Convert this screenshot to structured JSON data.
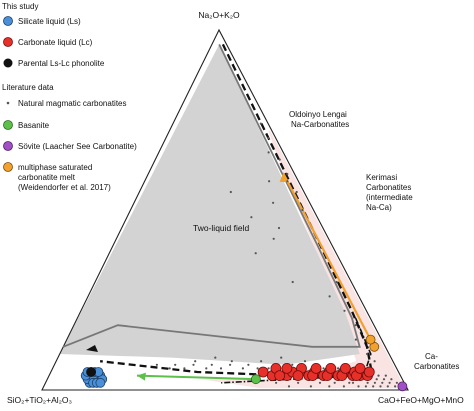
{
  "chart_data": {
    "type": "scatter",
    "coordinate_system": "ternary",
    "vertex_labels": {
      "top": "Na₂O+K₂O",
      "left": "SiO₂+TiO₂+Al₂O₃",
      "right": "CaO+FeO+MgO+MnO"
    },
    "legend": {
      "placement": "top-left",
      "groups": [
        {
          "title": "This study",
          "entries": [
            {
              "label": "Silicate liquid (Ls)",
              "marker": "circle",
              "color": "#4a90d9"
            },
            {
              "label": "Carbonate liquid (Lc)",
              "marker": "circle",
              "color": "#e8302a"
            },
            {
              "label": "Parental Ls-Lc phonolite",
              "marker": "circle",
              "color": "#111111"
            }
          ]
        },
        {
          "title": "Literature data",
          "entries": [
            {
              "label": "Natural magmatic carbonatites",
              "marker": "dot",
              "color": "#555555"
            },
            {
              "label": "Basanite",
              "marker": "circle",
              "color": "#5cc04a"
            },
            {
              "label": "Sövite (Laacher See Carbonatite)",
              "marker": "circle",
              "color": "#a04fc4"
            },
            {
              "label_lines": [
                "multiphase saturated",
                "carbonatite melt",
                "(Weidendorfer et al. 2017)"
              ],
              "marker": "circle",
              "color": "#f2a02e"
            }
          ]
        }
      ]
    },
    "annotations": {
      "two_liquid": "Two-liquid field",
      "oldoinyo": [
        "Oldoinyo Lengai",
        "Na-Carbonatites"
      ],
      "kerimasi": [
        "Kerimasi",
        "Carbonatites",
        "(intermediate",
        "Na-Ca)"
      ],
      "ca_carb": [
        "Ca-",
        "Carbonatites"
      ]
    },
    "series": [
      {
        "name": "Silicate liquid (Ls)",
        "points": [
          [
            85,
            3,
            12
          ],
          [
            83,
            4,
            13
          ],
          [
            86,
            2,
            12
          ],
          [
            84,
            3,
            13
          ],
          [
            82,
            4,
            14
          ],
          [
            85,
            4,
            11
          ],
          [
            83,
            3,
            14
          ],
          [
            86,
            3,
            11
          ],
          [
            84,
            4,
            12
          ],
          [
            82,
            3,
            15
          ],
          [
            85,
            2,
            13
          ],
          [
            83,
            5,
            12
          ],
          [
            84,
            2,
            14
          ],
          [
            86,
            4,
            10
          ],
          [
            82,
            5,
            13
          ],
          [
            83,
            2,
            15
          ],
          [
            85,
            5,
            10
          ],
          [
            84,
            5,
            11
          ]
        ]
      },
      {
        "name": "Carbonate liquid (Lc)",
        "points": [
          [
            37,
            5,
            58
          ],
          [
            35,
            4,
            61
          ],
          [
            33,
            6,
            61
          ],
          [
            31,
            4,
            65
          ],
          [
            27,
            5,
            68
          ],
          [
            25,
            4,
            71
          ],
          [
            23,
            5,
            72
          ],
          [
            21,
            4,
            75
          ],
          [
            19,
            5,
            76
          ],
          [
            17,
            4,
            79
          ],
          [
            15,
            5,
            80
          ],
          [
            13,
            4,
            83
          ],
          [
            12,
            5,
            83
          ],
          [
            11,
            4,
            85
          ],
          [
            10,
            5,
            85
          ],
          [
            9,
            4,
            87
          ],
          [
            33,
            4,
            63
          ],
          [
            29,
            5,
            66
          ],
          [
            26,
            6,
            68
          ],
          [
            24,
            4,
            72
          ],
          [
            22,
            6,
            72
          ],
          [
            20,
            4,
            76
          ],
          [
            18,
            6,
            76
          ],
          [
            16,
            4,
            80
          ],
          [
            14,
            6,
            80
          ],
          [
            12,
            4,
            84
          ],
          [
            10,
            6,
            84
          ],
          [
            30,
            6,
            64
          ],
          [
            28,
            4,
            68
          ],
          [
            8,
            5,
            87
          ]
        ]
      },
      {
        "name": "Parental Ls-Lc phonolite",
        "points": [
          [
            84,
            5,
            11
          ]
        ]
      },
      {
        "name": "Basanite",
        "points": [
          [
            40,
            3,
            57
          ]
        ]
      },
      {
        "name": "Sövite (Laacher See Carbonatite)",
        "points": [
          [
            1,
            1,
            98
          ]
        ]
      },
      {
        "name": "multiphase saturated carbonatite melt (Weidendorfer et al. 2017)",
        "points": [
          [
            3,
            12,
            85
          ],
          [
            3,
            14,
            83
          ]
        ]
      },
      {
        "name": "Natural magmatic carbonatites",
        "points": [
          [
            2,
            60,
            38
          ],
          [
            2,
            70,
            28
          ],
          [
            2,
            55,
            43
          ],
          [
            2,
            64,
            34
          ],
          [
            3,
            50,
            47
          ],
          [
            4,
            66,
            30
          ],
          [
            2,
            74,
            24
          ],
          [
            3,
            58,
            39
          ],
          [
            20,
            55,
            25
          ],
          [
            18,
            48,
            34
          ],
          [
            15,
            42,
            43
          ],
          [
            12,
            45,
            43
          ],
          [
            22,
            38,
            40
          ],
          [
            10,
            52,
            38
          ],
          [
            16,
            30,
            54
          ],
          [
            8,
            58,
            34
          ],
          [
            20,
            6,
            74
          ],
          [
            18,
            7,
            75
          ],
          [
            16,
            6,
            78
          ],
          [
            25,
            6,
            69
          ],
          [
            28,
            7,
            65
          ],
          [
            30,
            6,
            64
          ],
          [
            32,
            7,
            61
          ],
          [
            35,
            6,
            59
          ],
          [
            38,
            6,
            56
          ],
          [
            40,
            7,
            53
          ],
          [
            42,
            6,
            52
          ],
          [
            45,
            7,
            48
          ],
          [
            48,
            6,
            46
          ],
          [
            50,
            7,
            43
          ],
          [
            52,
            6,
            42
          ],
          [
            55,
            7,
            38
          ],
          [
            58,
            6,
            36
          ],
          [
            60,
            7,
            33
          ],
          [
            62,
            6,
            32
          ],
          [
            65,
            7,
            28
          ],
          [
            36,
            8,
            56
          ],
          [
            44,
            8,
            48
          ],
          [
            54,
            8,
            38
          ],
          [
            24,
            8,
            68
          ],
          [
            30,
            9,
            61
          ],
          [
            48,
            9,
            43
          ],
          [
            5,
            3,
            92
          ],
          [
            4,
            2,
            94
          ],
          [
            6,
            2,
            92
          ],
          [
            3,
            3,
            94
          ],
          [
            7,
            3,
            90
          ],
          [
            8,
            2,
            90
          ],
          [
            9,
            3,
            88
          ],
          [
            10,
            2,
            88
          ],
          [
            12,
            3,
            85
          ],
          [
            14,
            2,
            84
          ],
          [
            2,
            2,
            96
          ],
          [
            3,
            1,
            96
          ],
          [
            5,
            1,
            94
          ],
          [
            7,
            1,
            92
          ],
          [
            9,
            1,
            90
          ],
          [
            11,
            1,
            88
          ],
          [
            6,
            4,
            90
          ],
          [
            4,
            4,
            92
          ],
          [
            13,
            1,
            86
          ],
          [
            15,
            2,
            83
          ],
          [
            17,
            1,
            82
          ],
          [
            19,
            2,
            79
          ],
          [
            21,
            1,
            78
          ],
          [
            23,
            2,
            75
          ],
          [
            26,
            1,
            73
          ],
          [
            29,
            2,
            69
          ],
          [
            32,
            1,
            67
          ],
          [
            35,
            2,
            63
          ],
          [
            8,
            4,
            88
          ],
          [
            10,
            4,
            86
          ],
          [
            5,
            8,
            87
          ],
          [
            6,
            10,
            84
          ],
          [
            4,
            12,
            84
          ],
          [
            7,
            14,
            79
          ],
          [
            5,
            18,
            77
          ],
          [
            6,
            22,
            72
          ],
          [
            8,
            26,
            66
          ],
          [
            4,
            30,
            66
          ]
        ]
      }
    ]
  }
}
